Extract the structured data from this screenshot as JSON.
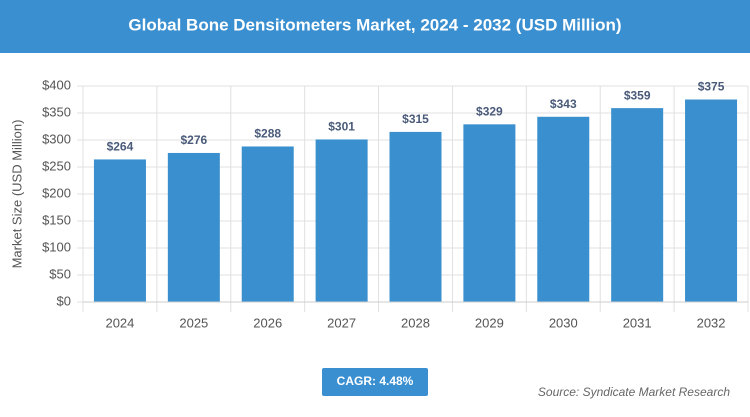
{
  "chart_data": {
    "type": "bar",
    "title": "Global Bone Densitometers Market, 2024 - 2032 (USD Million)",
    "y_label": "Market Size (USD Million)",
    "categories": [
      "2024",
      "2025",
      "2026",
      "2027",
      "2028",
      "2029",
      "2030",
      "2031",
      "2032"
    ],
    "values": [
      264,
      276,
      288,
      301,
      315,
      329,
      343,
      359,
      375
    ],
    "value_labels": [
      "$264",
      "$276",
      "$288",
      "$301",
      "$315",
      "$329",
      "$343",
      "$359",
      "$375"
    ],
    "color": "#3a8fce",
    "ylim": [
      0,
      400
    ],
    "yticks": [
      {
        "value": 0,
        "label": "$0"
      },
      {
        "value": 50,
        "label": "$50"
      },
      {
        "value": 100,
        "label": "$100"
      },
      {
        "value": 150,
        "label": "$150"
      },
      {
        "value": 200,
        "label": "$200"
      },
      {
        "value": 250,
        "label": "$250"
      },
      {
        "value": 300,
        "label": "$300"
      },
      {
        "value": 350,
        "label": "$350"
      },
      {
        "value": 400,
        "label": "$400"
      }
    ],
    "grid": true,
    "cagr": "CAGR: 4.48%",
    "source": "Source: Syndicate Market Research"
  }
}
